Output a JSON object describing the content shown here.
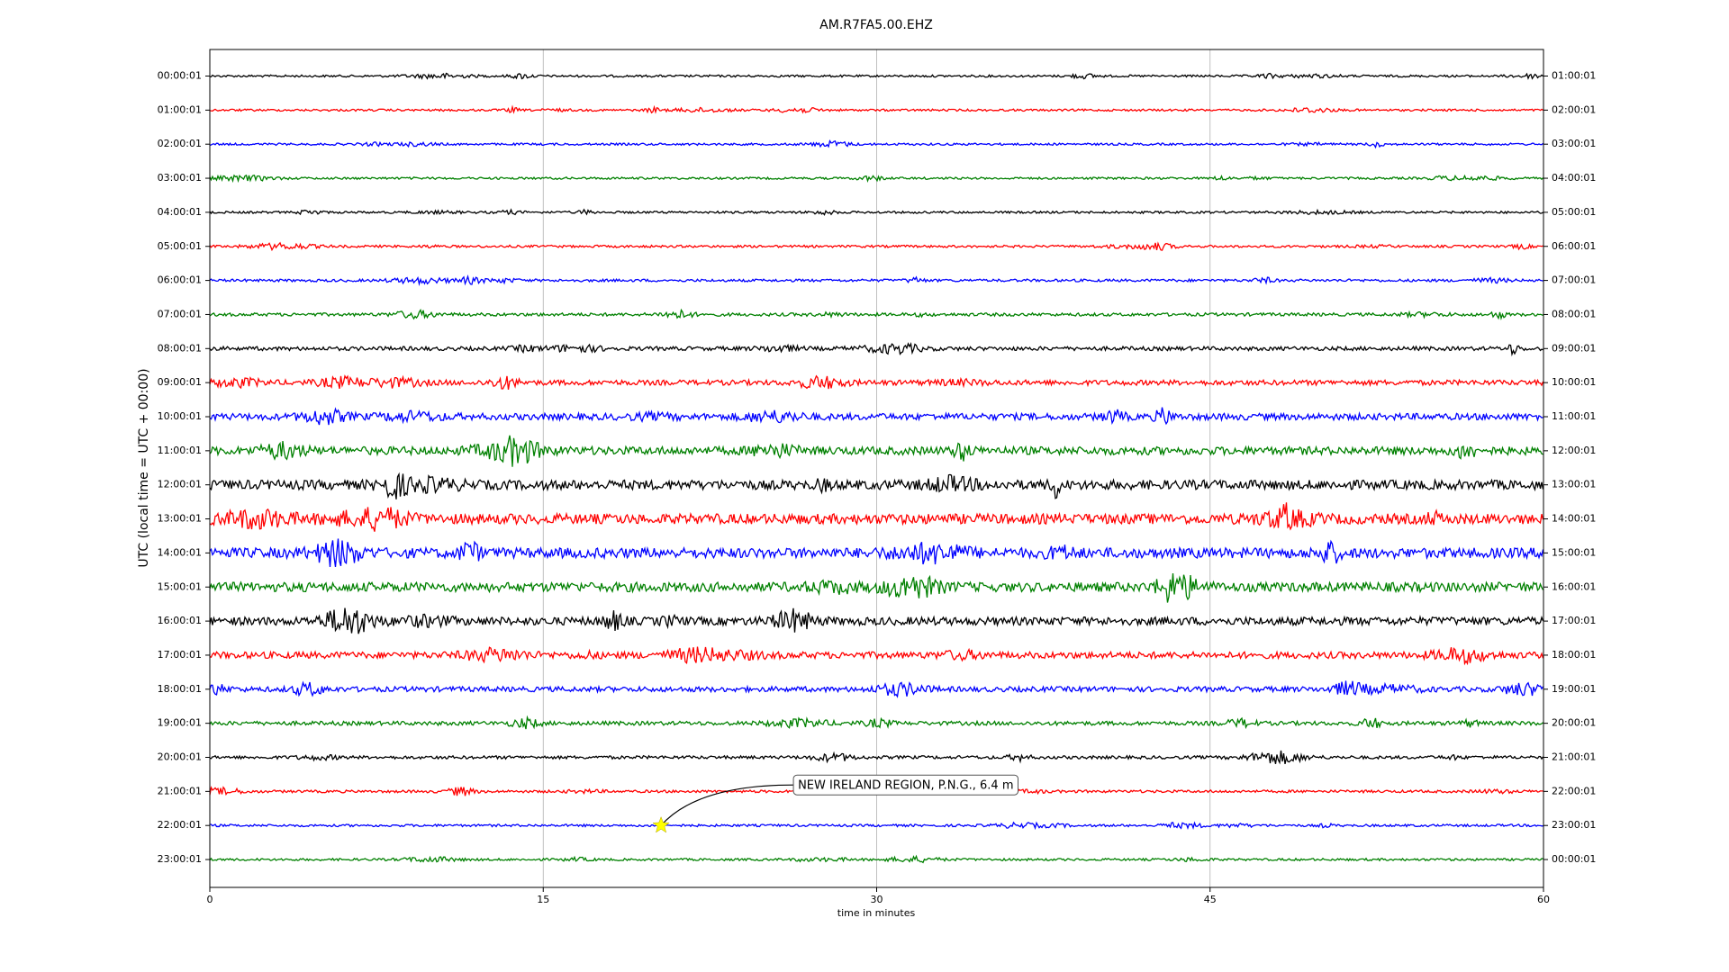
{
  "chart_data": {
    "type": "helicorder",
    "title": "AM.R7FA5.00.EHZ",
    "x_label": "time in minutes",
    "y_label": "UTC (local time = UTC + 00:00)",
    "categories": [
      "00:00:01",
      "01:00:01",
      "02:00:01",
      "03:00:01",
      "04:00:01",
      "05:00:01",
      "06:00:01",
      "07:00:01",
      "08:00:01",
      "09:00:01",
      "10:00:01",
      "11:00:01",
      "12:00:01",
      "13:00:01",
      "14:00:01",
      "15:00:01",
      "16:00:01",
      "17:00:01",
      "18:00:01",
      "19:00:01",
      "20:00:01",
      "21:00:01",
      "22:00:01",
      "23:00:01"
    ],
    "right_labels": [
      "01:00:01",
      "02:00:01",
      "03:00:01",
      "04:00:01",
      "05:00:01",
      "06:00:01",
      "07:00:01",
      "08:00:01",
      "09:00:01",
      "10:00:01",
      "11:00:01",
      "12:00:01",
      "13:00:01",
      "14:00:01",
      "15:00:01",
      "16:00:01",
      "17:00:01",
      "18:00:01",
      "19:00:01",
      "20:00:01",
      "21:00:01",
      "22:00:01",
      "23:00:01",
      "00:00:01"
    ],
    "colors": [
      "#000000",
      "#ff0000",
      "#0000ff",
      "#008000"
    ],
    "xlim": [
      0,
      60
    ],
    "xticks": [
      0,
      15,
      30,
      45,
      60
    ],
    "grid": true,
    "events": [
      {
        "label": "NEW IRELAND REGION, P.N.G., 6.4 m",
        "x": 20.3,
        "category": "22:00:01",
        "color": "#ffff00"
      }
    ]
  }
}
